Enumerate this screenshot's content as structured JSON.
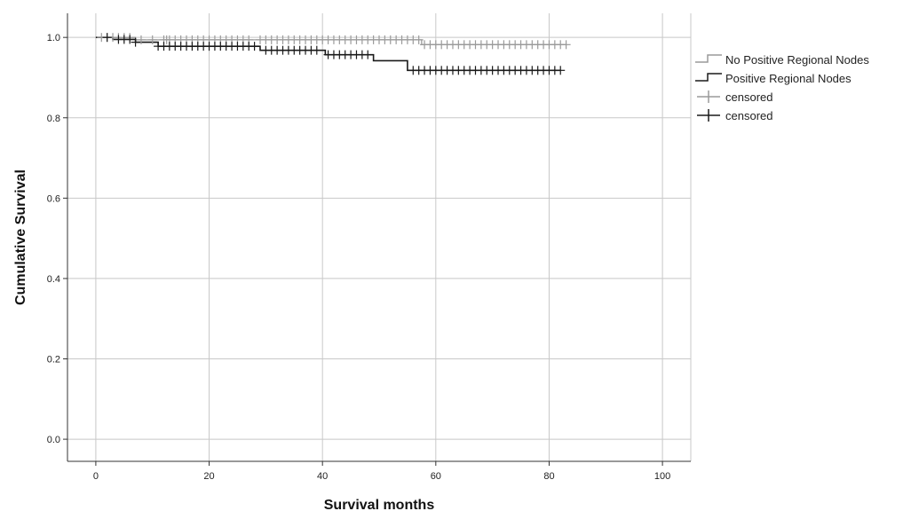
{
  "chart_data": {
    "type": "line",
    "subtype": "kaplan-meier",
    "title": "",
    "xlabel": "Survival months",
    "ylabel": "Cumulative Survival",
    "xlim": [
      -5,
      105
    ],
    "ylim": [
      -0.055,
      1.06
    ],
    "x_ticks": [
      0,
      20,
      40,
      60,
      80,
      100
    ],
    "x_tick_labels": [
      "0",
      "20",
      "40",
      "60",
      "80",
      "100"
    ],
    "y_ticks": [
      0.0,
      0.2,
      0.4,
      0.6,
      0.8,
      1.0
    ],
    "y_tick_labels": [
      "0.0",
      "0.2",
      "0.4",
      "0.6",
      "0.8",
      "1.0"
    ],
    "grid": true,
    "legend_position": "right",
    "colors": {
      "no_positive": "#9a9a9a",
      "positive": "#1a1a1a",
      "grid": "#c8c8c8",
      "axis": "#333333"
    },
    "series": [
      {
        "name": "No Positive Regional Nodes",
        "color": "#9a9a9a",
        "steps": [
          [
            0,
            1.0
          ],
          [
            3,
            1.0
          ],
          [
            7,
            0.994
          ],
          [
            28,
            0.994
          ],
          [
            40,
            0.994
          ],
          [
            57.5,
            0.994
          ],
          [
            57.5,
            0.982
          ],
          [
            83,
            0.982
          ]
        ],
        "censored": [
          1,
          2,
          3,
          4,
          5,
          6,
          8,
          10,
          12,
          12.5,
          13,
          14,
          15,
          16,
          17,
          18,
          19,
          20,
          21,
          22,
          23,
          24,
          25,
          26,
          27,
          29,
          30,
          31,
          32,
          33,
          34,
          35,
          36,
          37,
          38,
          39,
          40,
          41,
          42,
          43,
          44,
          45,
          46,
          47,
          48,
          49,
          50,
          51,
          52,
          53,
          54,
          55,
          56,
          57,
          58,
          59,
          60,
          61,
          62,
          63,
          64,
          65,
          66,
          67,
          68,
          69,
          70,
          71,
          72,
          73,
          74,
          75,
          76,
          77,
          78,
          79,
          80,
          81,
          82,
          83
        ]
      },
      {
        "name": "Positive Regional Nodes",
        "color": "#1a1a1a",
        "steps": [
          [
            0,
            1.0
          ],
          [
            3,
            0.995
          ],
          [
            7,
            0.988
          ],
          [
            11,
            0.978
          ],
          [
            29,
            0.978
          ],
          [
            29,
            0.968
          ],
          [
            40.5,
            0.968
          ],
          [
            40.5,
            0.957
          ],
          [
            49,
            0.957
          ],
          [
            49,
            0.942
          ],
          [
            55,
            0.942
          ],
          [
            55,
            0.918
          ],
          [
            82,
            0.918
          ]
        ],
        "censored": [
          2,
          4,
          5,
          6,
          7,
          11,
          12,
          13,
          14,
          15,
          16,
          17,
          18,
          19,
          20,
          21,
          22,
          23,
          24,
          25,
          26,
          27,
          28,
          30,
          31,
          32,
          33,
          34,
          35,
          36,
          37,
          38,
          39,
          41,
          42,
          43,
          44,
          45,
          46,
          47,
          48,
          56,
          57,
          58,
          59,
          60,
          61,
          62,
          63,
          64,
          65,
          66,
          67,
          68,
          69,
          70,
          71,
          72,
          73,
          74,
          75,
          76,
          77,
          78,
          79,
          80,
          81,
          82
        ]
      }
    ],
    "legend": [
      {
        "label": "No Positive Regional Nodes",
        "kind": "step",
        "color": "#9a9a9a"
      },
      {
        "label": "Positive Regional Nodes",
        "kind": "step",
        "color": "#1a1a1a"
      },
      {
        "label": "censored",
        "kind": "cross",
        "color": "#9a9a9a"
      },
      {
        "label": "censored",
        "kind": "cross",
        "color": "#1a1a1a"
      }
    ]
  }
}
